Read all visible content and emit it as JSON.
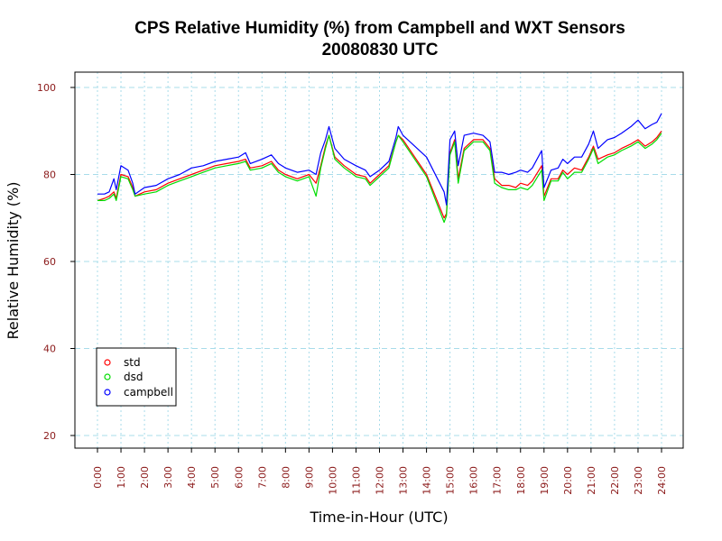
{
  "chart_data": {
    "type": "line",
    "title": "CPS Relative Humidity (%) from Campbell and WXT Sensors",
    "subtitle": "20080830  UTC",
    "xlabel": "Time-in-Hour (UTC)",
    "ylabel": "Relative Humidity (%)",
    "xlim": [
      0,
      24
    ],
    "ylim": [
      20,
      100
    ],
    "x_ticks": [
      "0:00",
      "1:00",
      "2:00",
      "3:00",
      "4:00",
      "5:00",
      "6:00",
      "7:00",
      "8:00",
      "9:00",
      "10:00",
      "11:00",
      "12:00",
      "13:00",
      "14:00",
      "15:00",
      "16:00",
      "17:00",
      "18:00",
      "19:00",
      "20:00",
      "21:00",
      "22:00",
      "23:00",
      "24:00"
    ],
    "y_ticks": [
      "20",
      "40",
      "60",
      "80",
      "100"
    ],
    "grid": true,
    "legend_position": "bottom-left",
    "series": [
      {
        "name": "std",
        "color": "#ff0000",
        "x": [
          0,
          0.3,
          0.5,
          0.7,
          0.8,
          1.0,
          1.3,
          1.5,
          1.6,
          2.0,
          2.5,
          3.0,
          3.5,
          4.0,
          4.5,
          5.0,
          5.5,
          6.0,
          6.3,
          6.5,
          7.0,
          7.4,
          7.7,
          8.0,
          8.5,
          9.0,
          9.3,
          9.5,
          9.7,
          9.85,
          10.1,
          10.5,
          11.0,
          11.4,
          11.6,
          12.0,
          12.4,
          12.7,
          12.8,
          13.0,
          14.0,
          14.75,
          14.85,
          15.0,
          15.2,
          15.35,
          15.6,
          16.0,
          16.4,
          16.7,
          16.9,
          17.2,
          17.5,
          17.8,
          18.0,
          18.3,
          18.5,
          18.9,
          19.0,
          19.3,
          19.6,
          19.8,
          20.0,
          20.3,
          20.6,
          20.9,
          21.1,
          21.3,
          21.7,
          22.0,
          22.3,
          22.7,
          23.0,
          23.3,
          23.6,
          23.8,
          24.0
        ],
        "values": [
          74,
          74.5,
          75,
          76,
          74.5,
          80,
          79.5,
          77,
          75,
          76,
          76.5,
          78,
          79,
          80,
          81,
          82,
          82.5,
          83,
          83.5,
          81.5,
          82,
          83,
          81,
          80,
          79,
          80,
          78,
          82,
          86.5,
          89,
          84,
          82,
          80,
          79.5,
          78,
          80,
          82,
          87.5,
          89,
          88,
          80,
          70,
          71,
          85,
          88,
          79,
          86,
          88,
          88,
          86,
          79,
          77.5,
          77.5,
          77,
          78,
          77.5,
          78.5,
          82,
          75,
          79,
          79,
          81,
          80,
          81.5,
          81,
          84,
          86.5,
          83.5,
          84.5,
          85,
          86,
          87,
          88,
          86.5,
          87.5,
          88.5,
          90
        ]
      },
      {
        "name": "dsd",
        "color": "#00dd00",
        "x": [
          0,
          0.3,
          0.5,
          0.7,
          0.8,
          1.0,
          1.3,
          1.5,
          1.6,
          2.0,
          2.5,
          3.0,
          3.5,
          4.0,
          4.5,
          5.0,
          5.5,
          6.0,
          6.3,
          6.5,
          7.0,
          7.4,
          7.7,
          8.0,
          8.5,
          9.0,
          9.3,
          9.5,
          9.7,
          9.85,
          10.1,
          10.5,
          11.0,
          11.4,
          11.6,
          12.0,
          12.4,
          12.7,
          12.8,
          13.0,
          14.0,
          14.75,
          14.85,
          15.0,
          15.2,
          15.35,
          15.6,
          16.0,
          16.4,
          16.7,
          16.9,
          17.2,
          17.5,
          17.8,
          18.0,
          18.3,
          18.5,
          18.9,
          19.0,
          19.3,
          19.6,
          19.8,
          20.0,
          20.3,
          20.6,
          20.9,
          21.1,
          21.3,
          21.7,
          22.0,
          22.3,
          22.7,
          23.0,
          23.3,
          23.6,
          23.8,
          24.0
        ],
        "values": [
          74,
          74,
          74.5,
          75.5,
          74,
          79.5,
          79,
          76.5,
          75,
          75.5,
          76,
          77.5,
          78.5,
          79.5,
          80.5,
          81.5,
          82,
          82.5,
          83,
          81,
          81.5,
          82.5,
          80.5,
          79.5,
          78.5,
          79.5,
          75,
          81.5,
          86,
          89,
          83.5,
          81.5,
          79.5,
          79,
          77.5,
          79.5,
          81.5,
          87.5,
          89,
          87.5,
          79.5,
          69,
          70.5,
          84.5,
          87.5,
          78,
          85.5,
          87.5,
          87.5,
          85.5,
          78,
          77,
          76.5,
          76.5,
          77,
          76.5,
          77.5,
          81,
          74,
          78.5,
          78.5,
          80.5,
          79,
          80.5,
          80.5,
          83.5,
          86,
          82.5,
          84,
          84.5,
          85.5,
          86.5,
          87.5,
          86,
          87,
          88,
          89.5
        ]
      },
      {
        "name": "campbell",
        "color": "#0000ff",
        "x": [
          0,
          0.3,
          0.5,
          0.7,
          0.8,
          1.0,
          1.3,
          1.5,
          1.6,
          2.0,
          2.5,
          3.0,
          3.5,
          4.0,
          4.5,
          5.0,
          5.5,
          6.0,
          6.3,
          6.5,
          7.0,
          7.4,
          7.7,
          8.0,
          8.5,
          9.0,
          9.3,
          9.5,
          9.7,
          9.85,
          10.1,
          10.5,
          11.0,
          11.4,
          11.6,
          12.0,
          12.4,
          12.7,
          12.8,
          13.0,
          14.0,
          14.75,
          14.85,
          15.0,
          15.2,
          15.35,
          15.6,
          16.0,
          16.4,
          16.7,
          16.9,
          17.2,
          17.5,
          17.8,
          18.0,
          18.3,
          18.5,
          18.9,
          19.0,
          19.3,
          19.6,
          19.8,
          20.0,
          20.3,
          20.6,
          20.9,
          21.1,
          21.3,
          21.7,
          22.0,
          22.3,
          22.7,
          23.0,
          23.3,
          23.6,
          23.8,
          24.0
        ],
        "values": [
          75.5,
          75.5,
          76,
          79,
          76.5,
          82,
          81,
          78,
          75.5,
          77,
          77.5,
          79,
          80,
          81.5,
          82,
          83,
          83.5,
          84,
          85,
          82.5,
          83.5,
          84.5,
          82.5,
          81.5,
          80.5,
          81,
          80,
          85,
          88,
          91,
          86,
          83.5,
          82,
          81,
          79.5,
          81,
          83,
          88.5,
          91,
          89,
          84,
          76,
          73,
          88,
          90,
          82,
          89,
          89.5,
          89,
          87.5,
          80.5,
          80.5,
          80,
          80.5,
          81,
          80.5,
          81.5,
          85.5,
          77,
          81,
          81.5,
          83.5,
          82.5,
          84,
          84,
          87,
          90,
          86,
          88,
          88.5,
          89.5,
          91,
          92.5,
          90.5,
          91.5,
          92,
          94
        ]
      }
    ]
  }
}
